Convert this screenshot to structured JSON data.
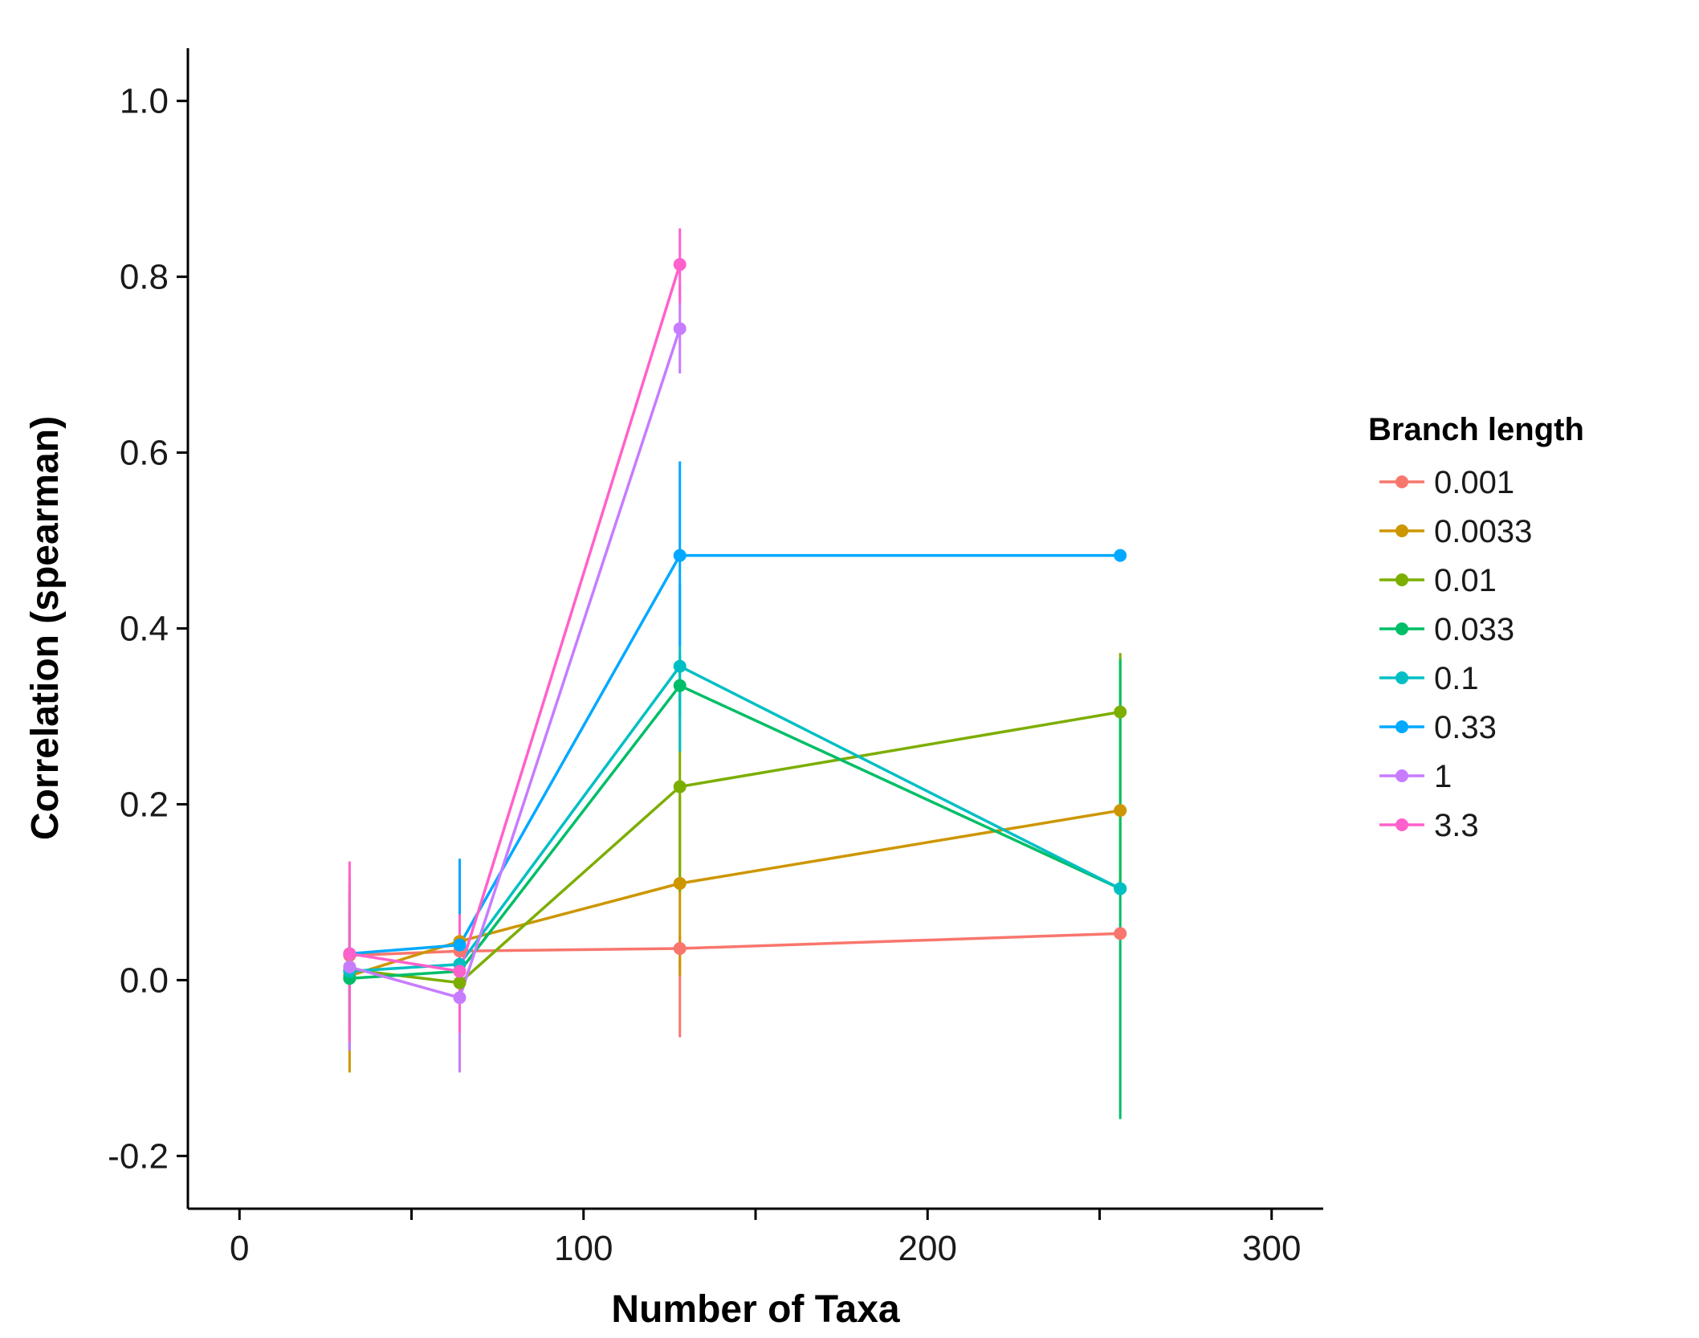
{
  "chart_data": {
    "type": "line",
    "title": "",
    "xlabel": "Number of Taxa",
    "ylabel": "Correlation (spearman)",
    "xlim": [
      -15,
      315
    ],
    "ylim": [
      -0.26,
      1.06
    ],
    "xticks": [
      0,
      50,
      100,
      150,
      200,
      250,
      300
    ],
    "xtick_labels": [
      "0",
      "",
      "100",
      "",
      "200",
      "",
      "300"
    ],
    "yticks": [
      -0.2,
      0.0,
      0.2,
      0.4,
      0.6,
      0.8,
      1.0
    ],
    "ytick_labels": [
      "-0.2",
      "0.0",
      "0.2",
      "0.4",
      "0.6",
      "0.8",
      "1.0"
    ],
    "grid": false,
    "legend": {
      "title": "Branch length",
      "position": "right"
    },
    "x": [
      32,
      64,
      128,
      256
    ],
    "series": [
      {
        "name": "0.001",
        "color": "#F8766D",
        "x": [
          32,
          64,
          128,
          256
        ],
        "y": [
          0.028,
          0.033,
          0.036,
          0.053
        ],
        "err_low": [
          0.028,
          0.033,
          -0.065,
          0.053
        ],
        "err_high": [
          0.028,
          0.033,
          0.05,
          0.053
        ]
      },
      {
        "name": "0.0033",
        "color": "#CD9600",
        "x": [
          32,
          64,
          128,
          256
        ],
        "y": [
          0.005,
          0.044,
          0.11,
          0.193
        ],
        "err_low": [
          -0.105,
          0.044,
          0.005,
          0.193
        ],
        "err_high": [
          0.08,
          0.044,
          0.21,
          0.193
        ]
      },
      {
        "name": "0.01",
        "color": "#7CAE00",
        "x": [
          32,
          64,
          128,
          256
        ],
        "y": [
          0.012,
          -0.003,
          0.22,
          0.305
        ],
        "err_low": [
          -0.08,
          -0.003,
          0.1,
          0.1
        ],
        "err_high": [
          0.1,
          -0.003,
          0.33,
          0.372
        ]
      },
      {
        "name": "0.033",
        "color": "#00BE67",
        "x": [
          32,
          64,
          128,
          256
        ],
        "y": [
          0.002,
          0.01,
          0.335,
          0.104
        ],
        "err_low": [
          -0.08,
          0.01,
          0.3,
          -0.158
        ],
        "err_high": [
          0.08,
          0.01,
          0.37,
          0.365
        ]
      },
      {
        "name": "0.1",
        "color": "#00BFC4",
        "x": [
          32,
          64,
          128,
          256
        ],
        "y": [
          0.01,
          0.018,
          0.357,
          0.104
        ],
        "err_low": [
          -0.08,
          0.018,
          0.26,
          0.104
        ],
        "err_high": [
          0.1,
          0.018,
          0.45,
          0.104
        ]
      },
      {
        "name": "0.33",
        "color": "#00A9FF",
        "x": [
          32,
          64,
          128,
          256
        ],
        "y": [
          0.03,
          0.04,
          0.483,
          0.483
        ],
        "err_low": [
          -0.05,
          -0.03,
          0.38,
          0.483
        ],
        "err_high": [
          0.11,
          0.138,
          0.59,
          0.483
        ]
      },
      {
        "name": "1",
        "color": "#C77CFF",
        "x": [
          32,
          64,
          128
        ],
        "y": [
          0.015,
          -0.02,
          0.741
        ],
        "err_low": [
          -0.08,
          -0.105,
          0.69
        ],
        "err_high": [
          0.12,
          0.06,
          0.79
        ]
      },
      {
        "name": "3.3",
        "color": "#FF61CC",
        "x": [
          32,
          64,
          128
        ],
        "y": [
          0.03,
          0.01,
          0.814
        ],
        "err_low": [
          -0.07,
          -0.06,
          0.77
        ],
        "err_high": [
          0.135,
          0.075,
          0.855
        ]
      }
    ]
  }
}
